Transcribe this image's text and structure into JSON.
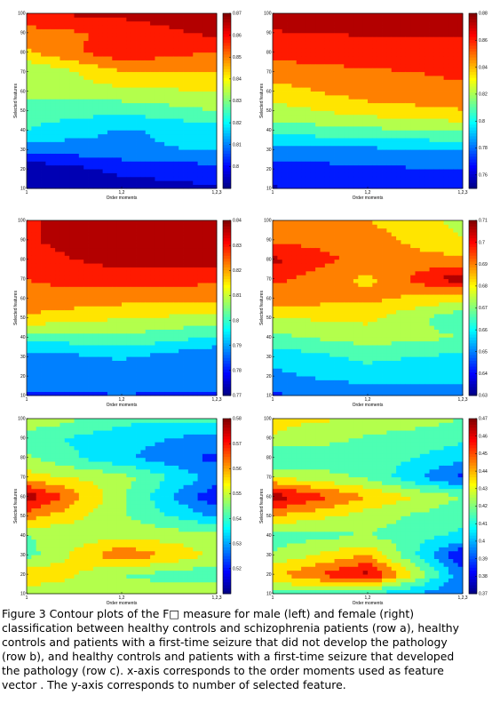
{
  "chart_data": [
    {
      "id": "a-male",
      "type": "heatmap",
      "xlabel": "Order moments",
      "ylabel": "Selected features",
      "x_categories": [
        "1",
        "1,2",
        "1,2,3"
      ],
      "y_ticks": [
        "10",
        "20",
        "30",
        "40",
        "50",
        "60",
        "70",
        "80",
        "90",
        "100"
      ],
      "clim": [
        0.79,
        0.87
      ],
      "colorbar_ticks": [
        "0.8",
        "0.81",
        "0.82",
        "0.83",
        "0.84",
        "0.85",
        "0.86",
        "0.87"
      ],
      "values": [
        [
          0.794,
          0.794,
          0.797
        ],
        [
          0.792,
          0.8,
          0.803
        ],
        [
          0.808,
          0.812,
          0.815
        ],
        [
          0.822,
          0.813,
          0.818
        ],
        [
          0.826,
          0.824,
          0.83
        ],
        [
          0.833,
          0.836,
          0.838
        ],
        [
          0.83,
          0.845,
          0.846
        ],
        [
          0.845,
          0.86,
          0.853
        ],
        [
          0.85,
          0.856,
          0.864
        ],
        [
          0.862,
          0.864,
          0.87
        ]
      ]
    },
    {
      "id": "a-female",
      "type": "heatmap",
      "xlabel": "Order moments",
      "ylabel": "Selected features",
      "x_categories": [
        "1",
        "1,2",
        "1,2,3"
      ],
      "y_ticks": [
        "10",
        "20",
        "30",
        "40",
        "50",
        "60",
        "70",
        "80",
        "90",
        "100"
      ],
      "clim": [
        0.75,
        0.88
      ],
      "colorbar_ticks": [
        "0.76",
        "0.78",
        "0.8",
        "0.82",
        "0.84",
        "0.86",
        "0.88"
      ],
      "values": [
        [
          0.762,
          0.765,
          0.765
        ],
        [
          0.77,
          0.774,
          0.776
        ],
        [
          0.782,
          0.786,
          0.789
        ],
        [
          0.808,
          0.812,
          0.818
        ],
        [
          0.822,
          0.834,
          0.84
        ],
        [
          0.835,
          0.848,
          0.852
        ],
        [
          0.848,
          0.852,
          0.856
        ],
        [
          0.858,
          0.862,
          0.864
        ],
        [
          0.866,
          0.868,
          0.868
        ],
        [
          0.874,
          0.878,
          0.878
        ]
      ]
    },
    {
      "id": "b-male",
      "type": "heatmap",
      "xlabel": "Order moments",
      "ylabel": "Selected features",
      "x_categories": [
        "1",
        "1,2",
        "1,2,3"
      ],
      "y_ticks": [
        "10",
        "20",
        "30",
        "40",
        "50",
        "60",
        "70",
        "80",
        "90",
        "100"
      ],
      "clim": [
        0.77,
        0.84
      ],
      "colorbar_ticks": [
        "0.77",
        "0.78",
        "0.79",
        "0.8",
        "0.81",
        "0.82",
        "0.83",
        "0.84"
      ],
      "values": [
        [
          0.782,
          0.784,
          0.782
        ],
        [
          0.79,
          0.786,
          0.79
        ],
        [
          0.787,
          0.792,
          0.784
        ],
        [
          0.8,
          0.804,
          0.797
        ],
        [
          0.818,
          0.812,
          0.81
        ],
        [
          0.824,
          0.822,
          0.82
        ],
        [
          0.826,
          0.83,
          0.828
        ],
        [
          0.83,
          0.836,
          0.838
        ],
        [
          0.832,
          0.839,
          0.84
        ],
        [
          0.832,
          0.838,
          0.84
        ]
      ]
    },
    {
      "id": "b-female",
      "type": "heatmap",
      "xlabel": "Order moments",
      "ylabel": "Selected features",
      "x_categories": [
        "1",
        "1,2",
        "1,2,3"
      ],
      "y_ticks": [
        "10",
        "20",
        "30",
        "40",
        "50",
        "60",
        "70",
        "80",
        "90",
        "100"
      ],
      "clim": [
        0.63,
        0.71
      ],
      "colorbar_ticks": [
        "0.63",
        "0.64",
        "0.65",
        "0.66",
        "0.67",
        "0.68",
        "0.69",
        "0.7",
        "0.71"
      ],
      "values": [
        [
          0.645,
          0.648,
          0.652
        ],
        [
          0.652,
          0.658,
          0.655
        ],
        [
          0.656,
          0.664,
          0.66
        ],
        [
          0.668,
          0.674,
          0.67
        ],
        [
          0.678,
          0.68,
          0.664
        ],
        [
          0.69,
          0.688,
          0.68
        ],
        [
          0.696,
          0.684,
          0.708
        ],
        [
          0.704,
          0.69,
          0.688
        ],
        [
          0.692,
          0.69,
          0.678
        ],
        [
          0.69,
          0.686,
          0.676
        ]
      ]
    },
    {
      "id": "c-male",
      "type": "heatmap",
      "xlabel": "Order moments",
      "ylabel": "Selected features",
      "x_categories": [
        "1",
        "1,2",
        "1,2,3"
      ],
      "y_ticks": [
        "10",
        "20",
        "30",
        "40",
        "50",
        "60",
        "70",
        "80",
        "90",
        "100"
      ],
      "clim": [
        0.51,
        0.58
      ],
      "colorbar_ticks": [
        "0.52",
        "0.53",
        "0.54",
        "0.55",
        "0.56",
        "0.57",
        "0.58"
      ],
      "values": [
        [
          0.546,
          0.548,
          0.55
        ],
        [
          0.56,
          0.545,
          0.54
        ],
        [
          0.542,
          0.565,
          0.55
        ],
        [
          0.545,
          0.55,
          0.548
        ],
        [
          0.562,
          0.546,
          0.53
        ],
        [
          0.578,
          0.546,
          0.518
        ],
        [
          0.555,
          0.548,
          0.528
        ],
        [
          0.546,
          0.532,
          0.522
        ],
        [
          0.54,
          0.534,
          0.528
        ],
        [
          0.552,
          0.54,
          0.54
        ]
      ]
    },
    {
      "id": "c-female",
      "type": "heatmap",
      "xlabel": "Order moments",
      "ylabel": "Selected features",
      "x_categories": [
        "1",
        "1,2",
        "1,2,3"
      ],
      "y_ticks": [
        "10",
        "20",
        "30",
        "40",
        "50",
        "60",
        "70",
        "80",
        "90",
        "100"
      ],
      "clim": [
        0.37,
        0.47
      ],
      "colorbar_ticks": [
        "0.37",
        "0.38",
        "0.39",
        "0.4",
        "0.41",
        "0.42",
        "0.43",
        "0.44",
        "0.45",
        "0.46",
        "0.47"
      ],
      "values": [
        [
          0.418,
          0.41,
          0.39
        ],
        [
          0.438,
          0.464,
          0.392
        ],
        [
          0.422,
          0.44,
          0.38
        ],
        [
          0.414,
          0.42,
          0.408
        ],
        [
          0.44,
          0.425,
          0.412
        ],
        [
          0.466,
          0.44,
          0.42
        ],
        [
          0.43,
          0.418,
          0.386
        ],
        [
          0.41,
          0.416,
          0.404
        ],
        [
          0.43,
          0.418,
          0.412
        ],
        [
          0.432,
          0.43,
          0.42
        ]
      ]
    }
  ],
  "caption": [
    "Figure 3 Contour plots of the F□ measure for male (left) and female (right)",
    "classification between healthy controls and schizophrenia patients (row a), healthy",
    "controls and patients with a first-time seizure that did not develop the pathology",
    "(row b), and healthy controls and patients with a first-time seizure that developed",
    "the pathology (row c).  x-axis corresponds to the order moments used as feature",
    "vector . The y-axis corresponds to number of selected feature."
  ]
}
